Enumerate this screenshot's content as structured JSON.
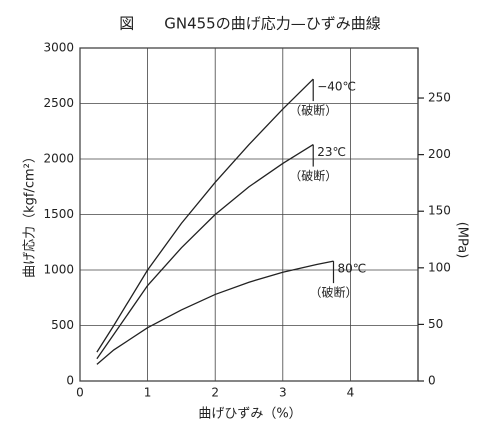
{
  "chart_data": {
    "type": "line",
    "title": "図　　GN455の曲げ応力—ひずみ曲線",
    "x_label": "曲げひずみ（%）",
    "y_label": "曲げ応力（kgf/cm²）",
    "y2_label": "(MPa)",
    "xlim": [
      0,
      5
    ],
    "xticks": [
      0,
      1,
      2,
      3,
      4
    ],
    "ylim": [
      0,
      3000
    ],
    "yticks": [
      0,
      500,
      1000,
      1500,
      2000,
      2500,
      3000
    ],
    "y2lim": [
      0,
      294.2
    ],
    "y2ticks": [
      0,
      50,
      100,
      150,
      200,
      250
    ],
    "grid": true,
    "series": [
      {
        "name": "−40℃",
        "note": "（破断）",
        "color": "#222222",
        "x": [
          0.25,
          0.5,
          1,
          1.5,
          2,
          2.5,
          3,
          3.45
        ],
        "values": [
          260,
          500,
          1000,
          1420,
          1790,
          2130,
          2450,
          2720
        ]
      },
      {
        "name": "23℃",
        "note": "（破断）",
        "color": "#222222",
        "x": [
          0.25,
          0.5,
          1,
          1.5,
          2,
          2.5,
          3,
          3.45
        ],
        "values": [
          200,
          420,
          860,
          1200,
          1500,
          1750,
          1960,
          2130
        ]
      },
      {
        "name": "80℃",
        "note": "（破断）",
        "color": "#222222",
        "x": [
          0.25,
          0.5,
          1,
          1.5,
          2,
          2.5,
          3,
          3.5,
          3.75
        ],
        "values": [
          150,
          280,
          480,
          640,
          780,
          890,
          980,
          1050,
          1080
        ]
      }
    ]
  }
}
